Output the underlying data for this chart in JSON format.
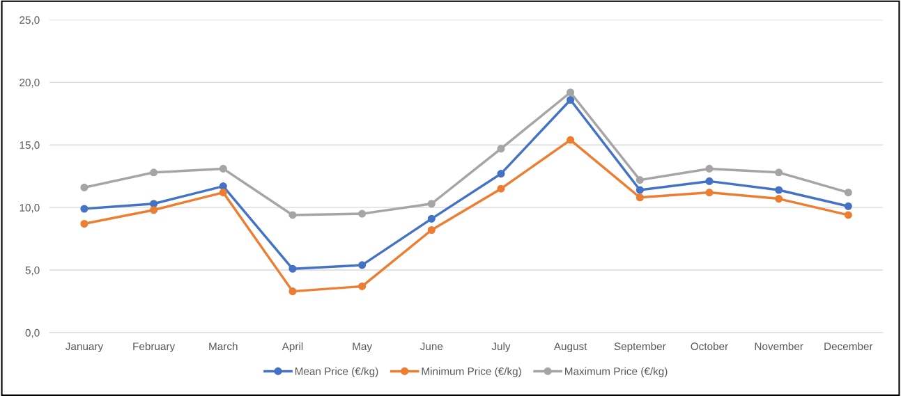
{
  "chart_data": {
    "type": "line",
    "categories": [
      "January",
      "February",
      "March",
      "April",
      "May",
      "June",
      "July",
      "August",
      "September",
      "October",
      "November",
      "December"
    ],
    "series": [
      {
        "name": "Mean Price (€/kg)",
        "color": "#4472c4",
        "values": [
          9.9,
          10.3,
          11.7,
          5.1,
          5.4,
          9.1,
          12.7,
          18.6,
          11.4,
          12.1,
          11.4,
          10.1
        ]
      },
      {
        "name": "Minimum Price (€/kg)",
        "color": "#ed7d31",
        "values": [
          8.7,
          9.8,
          11.2,
          3.3,
          3.7,
          8.2,
          11.5,
          15.4,
          10.8,
          11.2,
          10.7,
          9.4
        ]
      },
      {
        "name": "Maximum Price (€/kg)",
        "color": "#a5a5a5",
        "values": [
          11.6,
          12.8,
          13.1,
          9.4,
          9.5,
          10.3,
          14.7,
          19.2,
          12.2,
          13.1,
          12.8,
          11.2
        ]
      }
    ],
    "ylim": [
      0,
      25
    ],
    "yticks": [
      {
        "value": 0,
        "label": "0,0"
      },
      {
        "value": 5,
        "label": "5,0"
      },
      {
        "value": 10,
        "label": "10,0"
      },
      {
        "value": 15,
        "label": "15,0"
      },
      {
        "value": 20,
        "label": "20,0"
      },
      {
        "value": 25,
        "label": "25,0"
      }
    ],
    "grid": "y",
    "legend": "bottom",
    "marker": "circle",
    "line_style": "solid"
  }
}
